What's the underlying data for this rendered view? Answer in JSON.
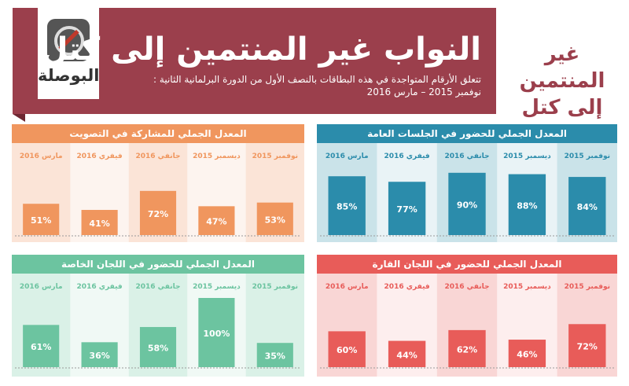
{
  "header": {
    "logo_text": "البوصلة",
    "title": "النواب غير المنتمين إلى كتل",
    "subtitle_line1": "تتعلق الأرقام المتواجدة في هذه البطاقات بالنصف الأول من الدورة البرلمانية الثانية :",
    "subtitle_line2": "نوفمبر 2015 – مارس 2016",
    "side_title": "غير المنتمين إلى كتل"
  },
  "colors": {
    "banner": "#9b3f4c",
    "voting": "#f0965e",
    "plenary": "#2b8cab",
    "special": "#6cc4a0",
    "permanent": "#e85c59"
  },
  "chart_data": [
    {
      "id": "voting",
      "type": "bar",
      "title": "المعدل الجملي للمشاركة في التصويت",
      "categories": [
        "نوفمبر 2015",
        "ديسمبر 2015",
        "جانفي 2016",
        "فيفري 2016",
        "مارس 2016"
      ],
      "values": [
        53,
        47,
        72,
        41,
        51
      ],
      "value_labels": [
        "53%",
        "47%",
        "72%",
        "41%",
        "51%"
      ],
      "ylim": [
        0,
        100
      ]
    },
    {
      "id": "plenary",
      "type": "bar",
      "title": "المعدل الجملي للحضور في الجلسات العامة",
      "categories": [
        "نوفمبر 2015",
        "ديسمبر 2015",
        "جانفي 2016",
        "فيفري 2016",
        "مارس 2016"
      ],
      "values": [
        84,
        88,
        90,
        77,
        85
      ],
      "value_labels": [
        "84%",
        "88%",
        "90%",
        "77%",
        "85%"
      ],
      "ylim": [
        0,
        100
      ]
    },
    {
      "id": "special",
      "type": "bar",
      "title": "المعدل الجملي للحضور في اللجان الخاصة",
      "categories": [
        "نوفمبر 2015",
        "ديسمبر 2015",
        "جانفي 2016",
        "فيفري 2016",
        "مارس 2016"
      ],
      "values": [
        35,
        100,
        58,
        36,
        61
      ],
      "value_labels": [
        "35%",
        "100%",
        "58%",
        "36%",
        "61%"
      ],
      "ylim": [
        0,
        100
      ]
    },
    {
      "id": "permanent",
      "type": "bar",
      "title": "المعدل الجملي للحضور في اللجان القارة",
      "categories": [
        "نوفمبر 2015",
        "ديسمبر 2015",
        "جانفي 2016",
        "فيفري 2016",
        "مارس 2016"
      ],
      "values": [
        72,
        46,
        62,
        44,
        60
      ],
      "value_labels": [
        "72%",
        "46%",
        "62%",
        "44%",
        "60%"
      ],
      "ylim": [
        0,
        100
      ]
    }
  ]
}
